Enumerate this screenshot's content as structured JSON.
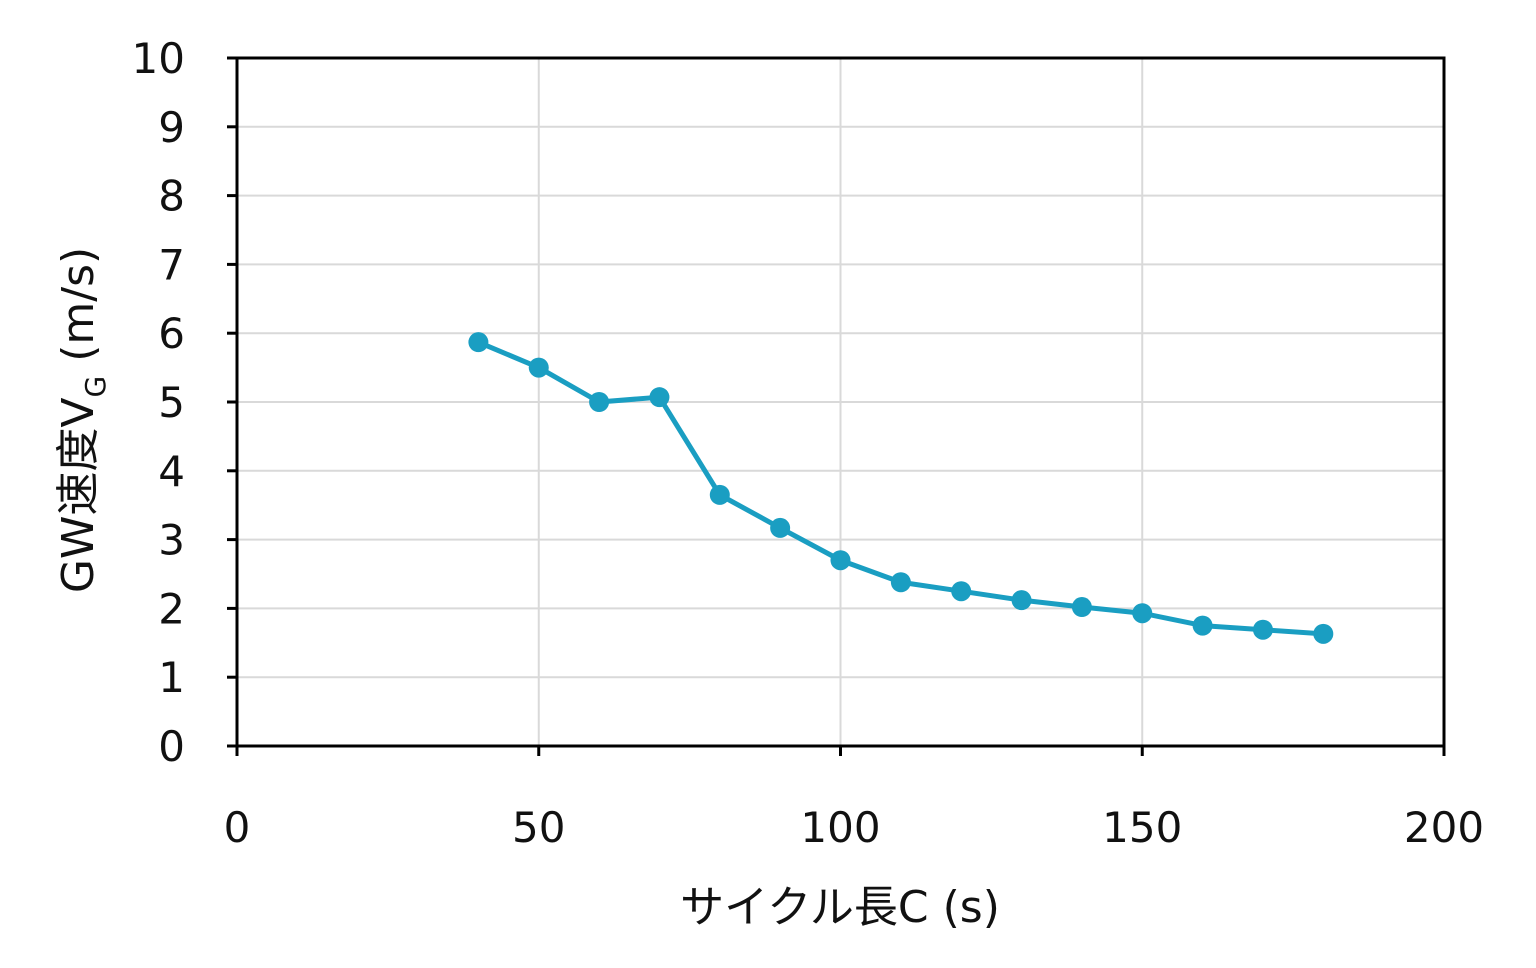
{
  "chart_data": {
    "type": "line",
    "title": "",
    "xlabel": "サイクル長C (s)",
    "ylabel": {
      "main": "GW速度V",
      "subscript": "G",
      "unit": " (m/s)"
    },
    "xlim": [
      0,
      200
    ],
    "ylim": [
      0,
      10
    ],
    "x_ticks": [
      0,
      50,
      100,
      150,
      200
    ],
    "y_ticks": [
      0,
      1,
      2,
      3,
      4,
      5,
      6,
      7,
      8,
      9,
      10
    ],
    "x_tick_labels": [
      "0",
      "50",
      "100",
      "150",
      "200"
    ],
    "y_tick_labels": [
      "0",
      "1",
      "2",
      "3",
      "4",
      "5",
      "6",
      "7",
      "8",
      "9",
      "10"
    ],
    "grid": true,
    "legend": "none",
    "series": [
      {
        "color": "#1a9ec2",
        "x": [
          40,
          50,
          60,
          70,
          80,
          90,
          100,
          110,
          120,
          130,
          140,
          150,
          160,
          170,
          180
        ],
        "y": [
          5.87,
          5.5,
          5.0,
          5.07,
          3.65,
          3.17,
          2.7,
          2.38,
          2.25,
          2.12,
          2.02,
          1.93,
          1.75,
          1.69,
          1.63
        ]
      }
    ]
  }
}
